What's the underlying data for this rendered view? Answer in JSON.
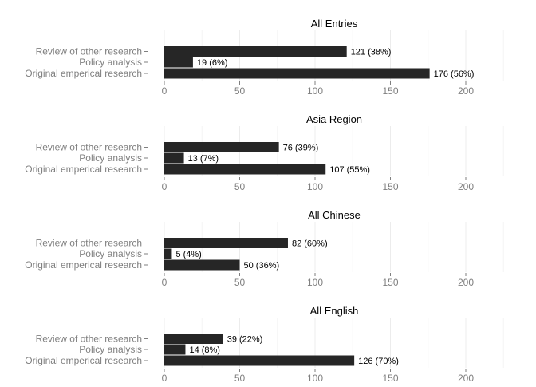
{
  "chart_data": [
    {
      "type": "bar",
      "orientation": "horizontal",
      "title": "All Entries",
      "categories": [
        "Review of other research",
        "Policy analysis",
        "Original emperical research"
      ],
      "values": [
        121,
        19,
        176
      ],
      "data_labels": [
        "121 (38%)",
        "19 (6%)",
        "176 (56%)"
      ],
      "xlim": [
        0,
        225
      ],
      "xticks": [
        0,
        50,
        100,
        150,
        200
      ],
      "bar_color": "#262626",
      "grid": true
    },
    {
      "type": "bar",
      "orientation": "horizontal",
      "title": "Asia Region",
      "categories": [
        "Review of other research",
        "Policy analysis",
        "Original emperical research"
      ],
      "values": [
        76,
        13,
        107
      ],
      "data_labels": [
        "76 (39%)",
        "13 (7%)",
        "107 (55%)"
      ],
      "xlim": [
        0,
        225
      ],
      "xticks": [
        0,
        50,
        100,
        150,
        200
      ],
      "bar_color": "#262626",
      "grid": true
    },
    {
      "type": "bar",
      "orientation": "horizontal",
      "title": "All Chinese",
      "categories": [
        "Review of other research",
        "Policy analysis",
        "Original emperical research"
      ],
      "values": [
        82,
        5,
        50
      ],
      "data_labels": [
        "82 (60%)",
        "5 (4%)",
        "50 (36%)"
      ],
      "xlim": [
        0,
        225
      ],
      "xticks": [
        0,
        50,
        100,
        150,
        200
      ],
      "bar_color": "#262626",
      "grid": true
    },
    {
      "type": "bar",
      "orientation": "horizontal",
      "title": "All English",
      "categories": [
        "Review of other research",
        "Policy analysis",
        "Original emperical research"
      ],
      "values": [
        39,
        14,
        126
      ],
      "data_labels": [
        "39 (22%)",
        "14 (8%)",
        "126 (70%)"
      ],
      "xlim": [
        0,
        225
      ],
      "xticks": [
        0,
        50,
        100,
        150,
        200
      ],
      "bar_color": "#262626",
      "grid": true
    }
  ]
}
